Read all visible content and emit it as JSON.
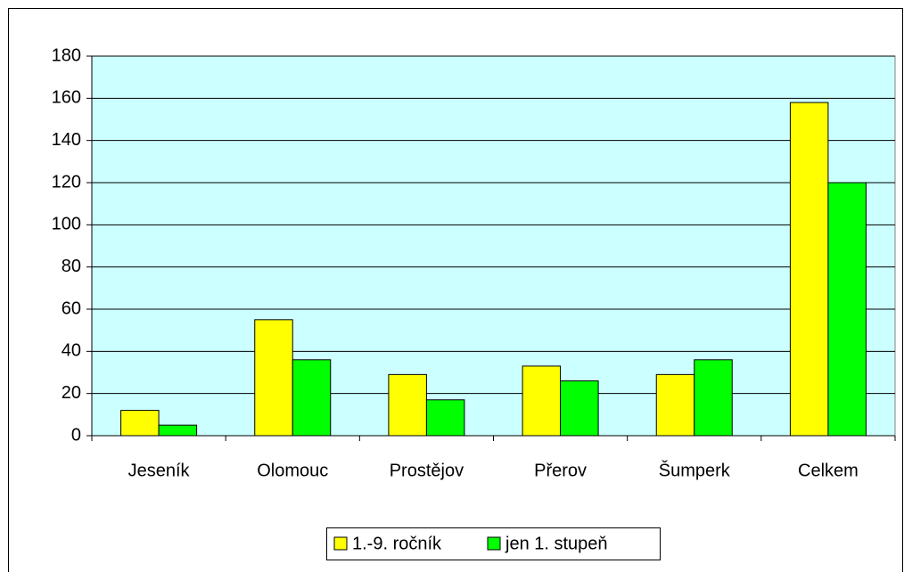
{
  "chart_data": {
    "type": "bar",
    "categories": [
      "Jeseník",
      "Olomouc",
      "Prostějov",
      "Přerov",
      "Šumperk",
      "Celkem"
    ],
    "series": [
      {
        "name": "1.-9. ročník",
        "color": "#ffff00",
        "values": [
          12,
          55,
          29,
          33,
          29,
          158
        ]
      },
      {
        "name": "jen 1. stupeň",
        "color": "#00ff00",
        "values": [
          5,
          36,
          17,
          26,
          36,
          120
        ]
      }
    ],
    "ylim": [
      0,
      180
    ],
    "yticks": [
      0,
      20,
      40,
      60,
      80,
      100,
      120,
      140,
      160,
      180
    ],
    "grid": true,
    "legend": "bottom",
    "plot_background": "#ccffff"
  }
}
